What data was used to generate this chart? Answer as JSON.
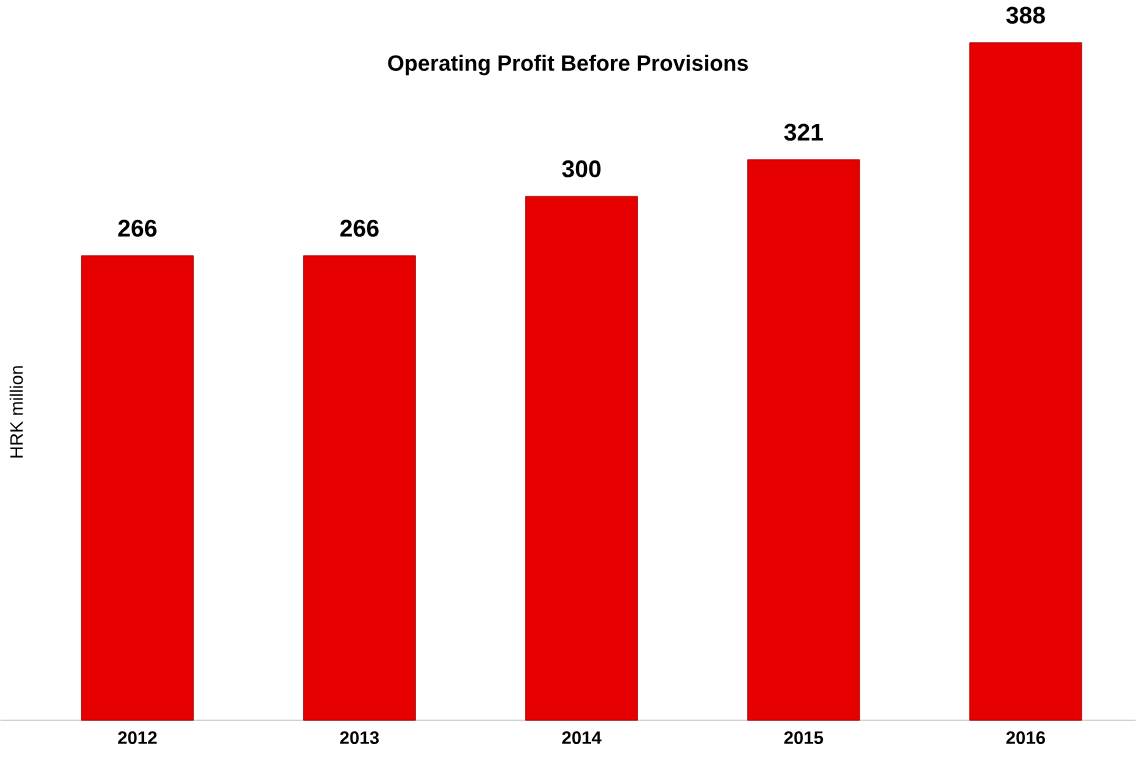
{
  "chart_data": {
    "type": "bar",
    "title": "Operating Profit Before Provisions",
    "ylabel": "HRK million",
    "categories": [
      "2012",
      "2013",
      "2014",
      "2015",
      "2016"
    ],
    "values": [
      266,
      266,
      300,
      321,
      388
    ],
    "color": "#e60000",
    "data_labels": true
  }
}
